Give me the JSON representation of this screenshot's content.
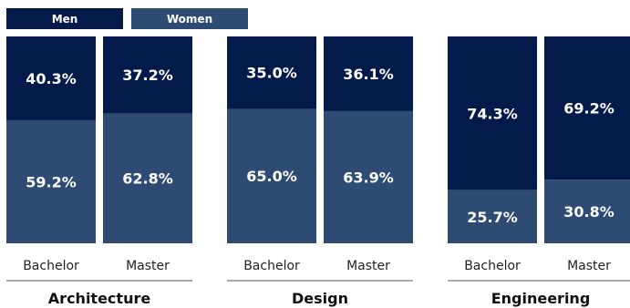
{
  "colors": {
    "men": "#041a4a",
    "women": "#2d4b73",
    "divider": "#555555"
  },
  "chart_data": {
    "type": "bar",
    "stacked": true,
    "percent": true,
    "legend": {
      "placement": "top-left",
      "items": [
        "Men",
        "Women"
      ]
    },
    "groups": [
      {
        "name": "Architecture",
        "categories": [
          "Bachelor",
          "Master"
        ],
        "series": [
          {
            "name": "Men",
            "values": [
              40.3,
              37.2
            ],
            "labels": [
              "40.3%",
              "37.2%"
            ]
          },
          {
            "name": "Women",
            "values": [
              59.2,
              62.8
            ],
            "labels": [
              "59.2%",
              "62.8%"
            ]
          }
        ]
      },
      {
        "name": "Design",
        "categories": [
          "Bachelor",
          "Master"
        ],
        "series": [
          {
            "name": "Men",
            "values": [
              35.0,
              36.1
            ],
            "labels": [
              "35.0%",
              "36.1%"
            ]
          },
          {
            "name": "Women",
            "values": [
              65.0,
              63.9
            ],
            "labels": [
              "65.0%",
              "63.9%"
            ]
          }
        ]
      },
      {
        "name": "Engineering",
        "categories": [
          "Bachelor",
          "Master"
        ],
        "series": [
          {
            "name": "Men",
            "values": [
              74.3,
              69.2
            ],
            "labels": [
              "74.3%",
              "69.2%"
            ]
          },
          {
            "name": "Women",
            "values": [
              25.7,
              30.8
            ],
            "labels": [
              "25.7%",
              "30.8%"
            ]
          }
        ]
      }
    ]
  }
}
